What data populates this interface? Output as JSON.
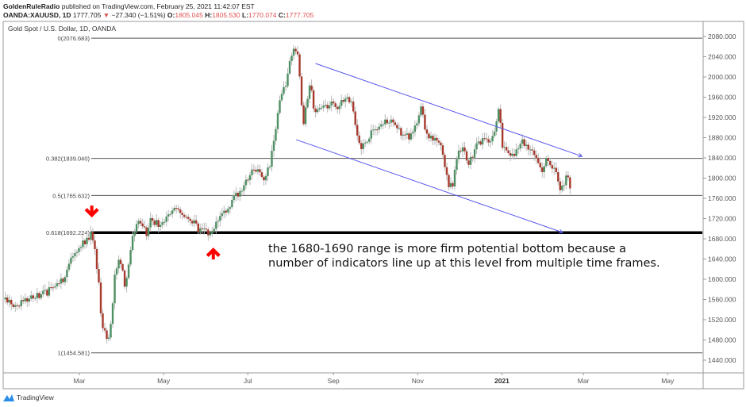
{
  "header": {
    "publisher": "GoldenRuleRadio",
    "published_text": "published on TradingView.com, February 25, 2021 11:42:07 EST",
    "symbol": "OANDA:XAUUSD, 1D",
    "last": "1777.705",
    "change": "−27.340 (−1.51%)",
    "o_label": "O:",
    "o": "1805.045",
    "h_label": "H:",
    "h": "1805.530",
    "l_label": "L:",
    "l": "1770.074",
    "c_label": "C:",
    "c": "1777.705"
  },
  "footer": {
    "brand": "TradingView"
  },
  "colors": {
    "up": "#4e8f63",
    "down": "#a6392c",
    "wick": "#b8b8b8",
    "channel": "#5555ee",
    "arrow": "#ff0000"
  },
  "chart_data": {
    "type": "candlestick",
    "title": "Gold Spot / U.S. Dollar, 1D, OANDA",
    "x_unit": "days since 2020-01-01",
    "ylim": [
      1410,
      2110
    ],
    "y_ticks": [
      "2080.000",
      "2040.000",
      "2000.000",
      "1960.000",
      "1920.000",
      "1880.000",
      "1840.000",
      "1800.000",
      "1760.000",
      "1720.000",
      "1680.000",
      "1640.000",
      "1600.000",
      "1560.000",
      "1520.000",
      "1480.000",
      "1440.000"
    ],
    "x_ticks": [
      {
        "label": "Mar",
        "day": 60
      },
      {
        "label": "May",
        "day": 121
      },
      {
        "label": "Jul",
        "day": 182
      },
      {
        "label": "Sep",
        "day": 244
      },
      {
        "label": "Nov",
        "day": 305
      },
      {
        "label": "2021",
        "day": 366,
        "bold": true
      },
      {
        "label": "Mar",
        "day": 425
      },
      {
        "label": "May",
        "day": 486
      }
    ],
    "price_path": [
      [
        5,
        1560
      ],
      [
        14,
        1550
      ],
      [
        25,
        1565
      ],
      [
        37,
        1575
      ],
      [
        48,
        1600
      ],
      [
        54,
        1640
      ],
      [
        60,
        1665
      ],
      [
        66,
        1680
      ],
      [
        69,
        1690
      ],
      [
        72,
        1640
      ],
      [
        74,
        1590
      ],
      [
        76,
        1510
      ],
      [
        79,
        1490
      ],
      [
        81,
        1480
      ],
      [
        83,
        1520
      ],
      [
        86,
        1620
      ],
      [
        89,
        1640
      ],
      [
        92,
        1620
      ],
      [
        93,
        1585
      ],
      [
        96,
        1640
      ],
      [
        99,
        1690
      ],
      [
        103,
        1720
      ],
      [
        106,
        1700
      ],
      [
        109,
        1690
      ],
      [
        112,
        1720
      ],
      [
        118,
        1705
      ],
      [
        123,
        1720
      ],
      [
        129,
        1745
      ],
      [
        135,
        1730
      ],
      [
        141,
        1720
      ],
      [
        146,
        1700
      ],
      [
        153,
        1690
      ],
      [
        157,
        1695
      ],
      [
        161,
        1720
      ],
      [
        166,
        1735
      ],
      [
        172,
        1760
      ],
      [
        178,
        1780
      ],
      [
        184,
        1810
      ],
      [
        189,
        1815
      ],
      [
        194,
        1800
      ],
      [
        198,
        1830
      ],
      [
        201,
        1870
      ],
      [
        204,
        1940
      ],
      [
        207,
        1970
      ],
      [
        210,
        1980
      ],
      [
        212,
        2030
      ],
      [
        216,
        2062
      ],
      [
        219,
        2030
      ],
      [
        222,
        1900
      ],
      [
        223,
        1920
      ],
      [
        227,
        1990
      ],
      [
        230,
        1930
      ],
      [
        235,
        1940
      ],
      [
        241,
        1940
      ],
      [
        244,
        1950
      ],
      [
        247,
        1940
      ],
      [
        253,
        1960
      ],
      [
        257,
        1955
      ],
      [
        261,
        1880
      ],
      [
        264,
        1860
      ],
      [
        270,
        1885
      ],
      [
        276,
        1900
      ],
      [
        281,
        1910
      ],
      [
        287,
        1915
      ],
      [
        293,
        1890
      ],
      [
        299,
        1880
      ],
      [
        304,
        1905
      ],
      [
        308,
        1950
      ],
      [
        310,
        1890
      ],
      [
        316,
        1880
      ],
      [
        322,
        1870
      ],
      [
        325,
        1820
      ],
      [
        327,
        1790
      ],
      [
        330,
        1780
      ],
      [
        333,
        1840
      ],
      [
        337,
        1860
      ],
      [
        342,
        1830
      ],
      [
        348,
        1865
      ],
      [
        352,
        1875
      ],
      [
        356,
        1870
      ],
      [
        360,
        1880
      ],
      [
        364,
        1950
      ],
      [
        366,
        1860
      ],
      [
        370,
        1850
      ],
      [
        375,
        1840
      ],
      [
        380,
        1875
      ],
      [
        385,
        1860
      ],
      [
        389,
        1850
      ],
      [
        392,
        1830
      ],
      [
        395,
        1805
      ],
      [
        398,
        1845
      ],
      [
        402,
        1820
      ],
      [
        405,
        1810
      ],
      [
        408,
        1775
      ],
      [
        411,
        1785
      ],
      [
        413,
        1810
      ],
      [
        416,
        1778
      ]
    ],
    "fib_levels": [
      {
        "label": "0(2076.683)",
        "value": 2076.683
      },
      {
        "label": "0.382(1839.040)",
        "value": 1839.04
      },
      {
        "label": "0.5(1765.632)",
        "value": 1765.632
      },
      {
        "label": "0.618(1692.224)",
        "value": 1692.224,
        "emphasis": true
      },
      {
        "label": "1(1454.581)",
        "value": 1454.581
      }
    ],
    "channel": [
      {
        "from": [
          231,
          2026.7
        ],
        "to": [
          424,
          1843
        ]
      },
      {
        "from": [
          217,
          1876
        ],
        "to": [
          410,
          1692.5
        ]
      }
    ],
    "arrows": [
      {
        "direction": "down",
        "day": 69,
        "price": 1730
      },
      {
        "direction": "up",
        "day": 157,
        "price": 1655
      }
    ],
    "annotation": [
      "the 1680-1690 range is more firm potential bottom because a",
      "number of indicators line up at this level from multiple time frames."
    ]
  }
}
